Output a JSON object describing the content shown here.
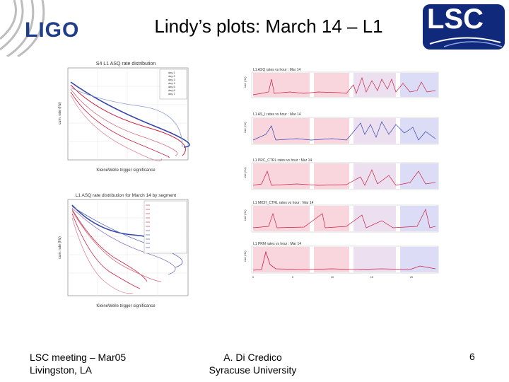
{
  "header": {
    "title": "Lindy’s plots: March 14 – L1",
    "left_logo": {
      "icon": "ligo-logo",
      "text": "LIGO",
      "color": "#1f3d8a"
    },
    "right_logo": {
      "icon": "lsc-logo",
      "text": "LSC",
      "color": "#11297a"
    }
  },
  "footer": {
    "left_line1": "LSC meeting – Mar05",
    "left_line2": "Livingston, LA",
    "center_line1": "A. Di Credico",
    "center_line2": "Syracuse University",
    "page_number": "6"
  },
  "figures": {
    "left_top_title": "S4 L1 ASQ rate distribution",
    "left_top_legend": [
      "day 1",
      "day 2",
      "day 3",
      "day 4",
      "day 5",
      "day 6",
      "day 7"
    ],
    "left_bottom_title": "L1 ASQ rate distribution for March 14 by segment",
    "left_xlabel": "KleineWelle trigger significance",
    "left_ylabel": "cum. rate (Hz)",
    "right_titles": [
      "L1 ASQ rates vs hour : Mar 14",
      "L1 AS_I rates vs hour : Mar 14",
      "L1 PRC_CTRL rates vs hour : Mar 14",
      "L1 MICH_CTRL rates vs hour : Mar 14",
      "L1 PRM rates vs hour : Mar 14"
    ],
    "right_ylabel": "rate (Hz)",
    "right_xticks": [
      "0",
      "5",
      "10",
      "15",
      "20"
    ],
    "colors": {
      "red": "#cc2244",
      "blue": "#3344aa",
      "pink_band": "#f9d6dd",
      "blue_band": "#dcdcf6"
    }
  }
}
